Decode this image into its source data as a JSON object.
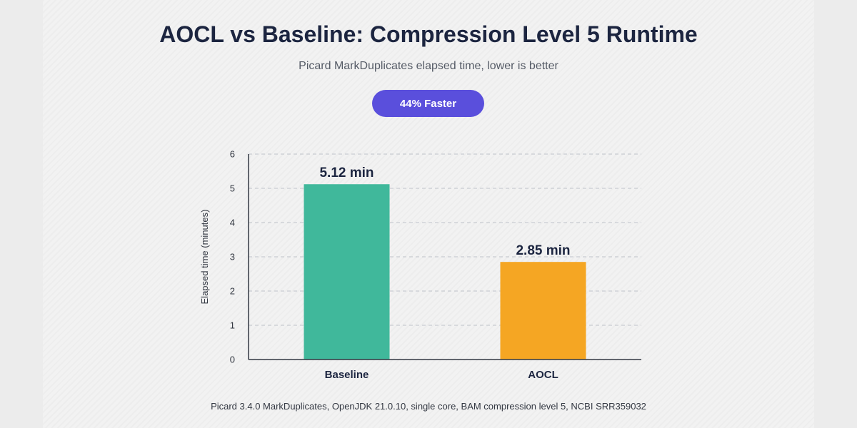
{
  "header": {
    "title": "AOCL vs Baseline: Compression Level 5 Runtime",
    "subtitle": "Picard MarkDuplicates elapsed time, lower is better",
    "badge": "44% Faster"
  },
  "footnote": "Picard 3.4.0 MarkDuplicates, OpenJDK 21.0.10, single core, BAM compression level 5, NCBI SRR359032",
  "colors": {
    "badge": "#5a4fdc",
    "baseline_bar": "#40b89b",
    "aocl_bar": "#f5a623",
    "text_dark": "#1c2540"
  },
  "chart_data": {
    "type": "bar",
    "title": "AOCL vs Baseline: Compression Level 5 Runtime",
    "subtitle": "Picard MarkDuplicates elapsed time, lower is better",
    "categories": [
      "Baseline",
      "AOCL"
    ],
    "values": [
      5.12,
      2.85
    ],
    "data_labels": [
      "5.12 min",
      "2.85 min"
    ],
    "bar_colors": [
      "#40b89b",
      "#f5a623"
    ],
    "xlabel": "",
    "ylabel": "Elapsed time (minutes)",
    "ylim": [
      0,
      6
    ],
    "yticks": [
      "0",
      "1",
      "2",
      "3",
      "4",
      "5",
      "6"
    ],
    "grid": true,
    "legend": "none"
  }
}
